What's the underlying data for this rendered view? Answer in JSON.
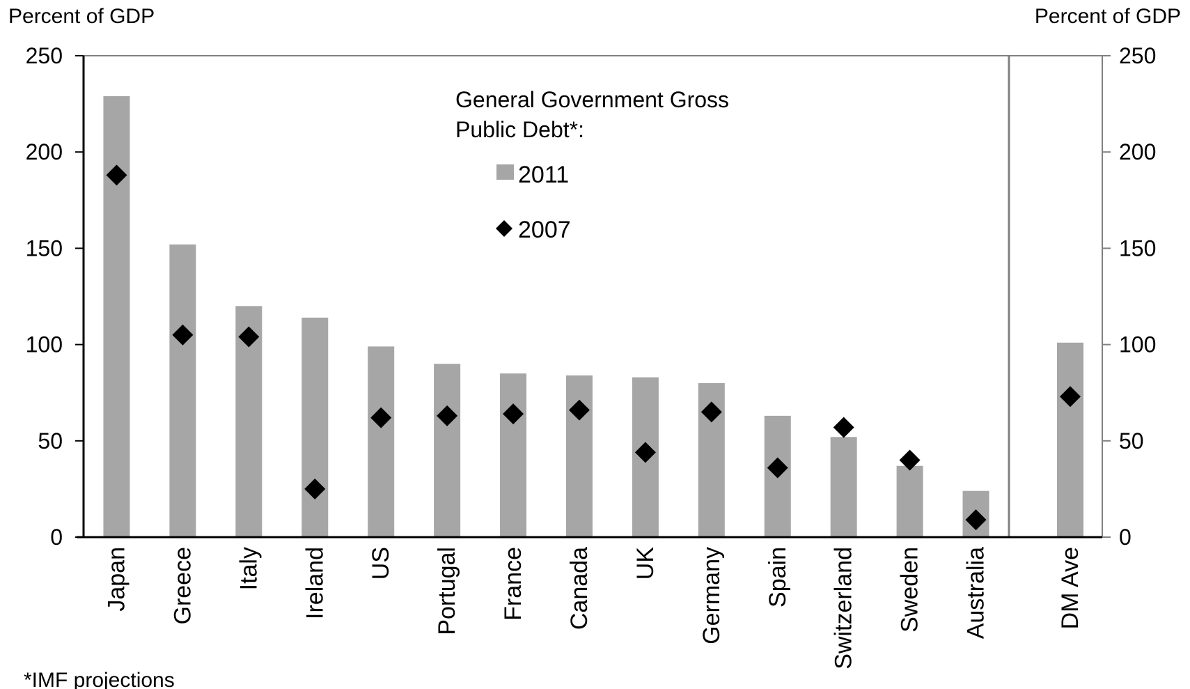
{
  "chart_data": {
    "type": "bar",
    "title": "",
    "ylabel_left": "Percent of GDP",
    "ylabel_right": "Percent of GDP",
    "ylim": [
      0,
      250
    ],
    "yticks": [
      0,
      50,
      100,
      150,
      200,
      250
    ],
    "grid": false,
    "legend": {
      "title": "General Government Gross Public Debt*:",
      "title_lines": [
        "General Government Gross",
        "Public Debt*:"
      ],
      "placement": "top-center"
    },
    "categories": [
      "Japan",
      "Greece",
      "Italy",
      "Ireland",
      "US",
      "Portugal",
      "France",
      "Canada",
      "UK",
      "Germany",
      "Spain",
      "Switzerland",
      "Sweden",
      "Australia",
      "DM Ave"
    ],
    "series": [
      {
        "name": "2011",
        "kind": "bar",
        "color": "#a6a6a6",
        "values": [
          229,
          152,
          120,
          114,
          99,
          90,
          85,
          84,
          83,
          80,
          63,
          52,
          37,
          24,
          101
        ]
      },
      {
        "name": "2007",
        "kind": "marker",
        "marker": "diamond",
        "color": "#000000",
        "values": [
          188,
          105,
          104,
          25,
          62,
          63,
          64,
          66,
          44,
          65,
          36,
          57,
          40,
          9,
          73
        ]
      }
    ],
    "separate_panel_categories": [
      "DM Ave"
    ],
    "footnote": "*IMF projections"
  }
}
